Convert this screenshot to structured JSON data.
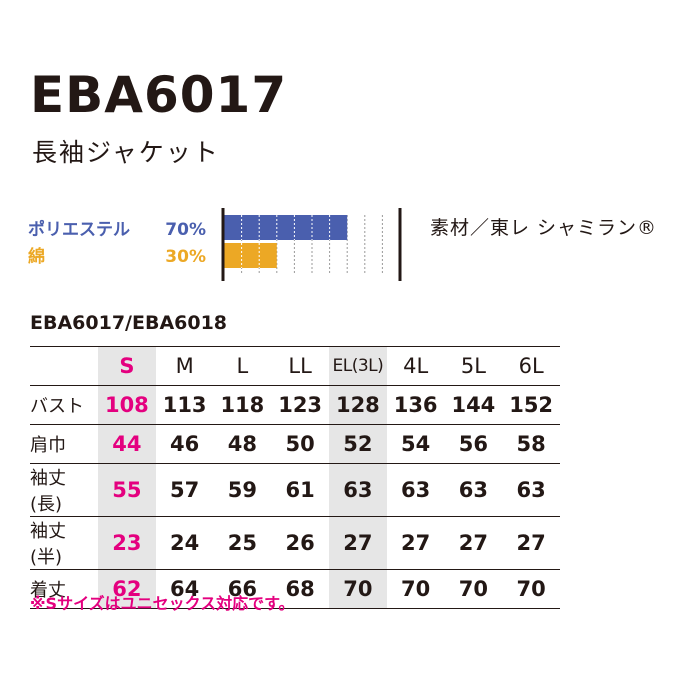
{
  "model": "EBA6017",
  "product_name": "長袖ジャケット",
  "materials": [
    {
      "name": "ポリエステル",
      "percent_label": "70%",
      "percent": 70,
      "color": "#4a5fae"
    },
    {
      "name": "綿",
      "percent_label": "30%",
      "percent": 30,
      "color": "#eca825"
    }
  ],
  "fabric": "素材／東レ シャミラン®",
  "table": {
    "title": "EBA6017/EBA6018",
    "sizes": [
      "S",
      "M",
      "L",
      "LL",
      "EL(3L)",
      "4L",
      "5L",
      "6L"
    ],
    "rows": [
      {
        "label": "バスト",
        "values": [
          "108",
          "113",
          "118",
          "123",
          "128",
          "136",
          "144",
          "152"
        ]
      },
      {
        "label": "肩巾",
        "values": [
          "44",
          "46",
          "48",
          "50",
          "52",
          "54",
          "56",
          "58"
        ]
      },
      {
        "label": "袖丈(長)",
        "values": [
          "55",
          "57",
          "59",
          "61",
          "63",
          "63",
          "63",
          "63"
        ]
      },
      {
        "label": "袖丈(半)",
        "values": [
          "23",
          "24",
          "25",
          "26",
          "27",
          "27",
          "27",
          "27"
        ]
      },
      {
        "label": "着丈",
        "values": [
          "62",
          "64",
          "66",
          "68",
          "70",
          "70",
          "70",
          "70"
        ]
      }
    ]
  },
  "note": "※Sサイズはユニセックス対応です。",
  "colors": {
    "text": "#231815",
    "accent_pink": "#e4007f",
    "highlight_gray": "#e6e6e6"
  }
}
